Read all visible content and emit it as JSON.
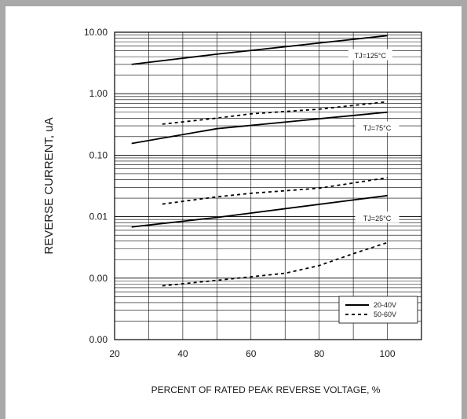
{
  "chart_data": {
    "type": "line",
    "xlabel": "PERCENT OF RATED PEAK REVERSE VOLTAGE, %",
    "ylabel": "REVERSE CURRENT, uA",
    "x_ticks": [
      20,
      40,
      60,
      80,
      100
    ],
    "xlim": [
      20,
      110
    ],
    "y_scale": "log",
    "y_ticks": [
      {
        "value": 0.0001,
        "label": "0.00"
      },
      {
        "value": 0.001,
        "label": "0.00"
      },
      {
        "value": 0.01,
        "label": "0.01"
      },
      {
        "value": 0.1,
        "label": "0.10"
      },
      {
        "value": 1,
        "label": "1.00"
      },
      {
        "value": 10,
        "label": "10.00"
      }
    ],
    "ylim": [
      0.0001,
      10
    ],
    "grid": true,
    "legend_position": "lower-right",
    "legend": [
      {
        "label": "20-40V",
        "style": "solid"
      },
      {
        "label": "50-60V",
        "style": "dashed"
      }
    ],
    "annotations": [
      {
        "text": "TJ=125°C",
        "x": 95,
        "y": 4.2
      },
      {
        "text": "TJ=75°C",
        "x": 97,
        "y": 0.28
      },
      {
        "text": "TJ=25°C",
        "x": 97,
        "y": 0.0095
      }
    ],
    "series": [
      {
        "group": "TJ=125°C",
        "style": "solid",
        "x": [
          25,
          50,
          100
        ],
        "y": [
          3.0,
          4.4,
          8.8
        ]
      },
      {
        "group": "TJ=75°C",
        "style": "dashed",
        "x": [
          34,
          50,
          60,
          80,
          100
        ],
        "y": [
          0.32,
          0.4,
          0.47,
          0.56,
          0.74
        ]
      },
      {
        "group": "TJ=75°C",
        "style": "solid",
        "x": [
          25,
          50,
          100
        ],
        "y": [
          0.155,
          0.27,
          0.5
        ]
      },
      {
        "group": "TJ=25°C",
        "style": "dashed",
        "x": [
          34,
          50,
          60,
          80,
          100
        ],
        "y": [
          0.016,
          0.021,
          0.024,
          0.029,
          0.043
        ]
      },
      {
        "group": "TJ=25°C",
        "style": "solid",
        "x": [
          25,
          50,
          100
        ],
        "y": [
          0.0068,
          0.0097,
          0.022
        ]
      },
      {
        "group": "TJ=25°C",
        "style": "dashed",
        "x": [
          34,
          50,
          60,
          70,
          80,
          90,
          100
        ],
        "y": [
          0.00075,
          0.00092,
          0.00105,
          0.0012,
          0.0016,
          0.0025,
          0.0038
        ]
      }
    ]
  }
}
